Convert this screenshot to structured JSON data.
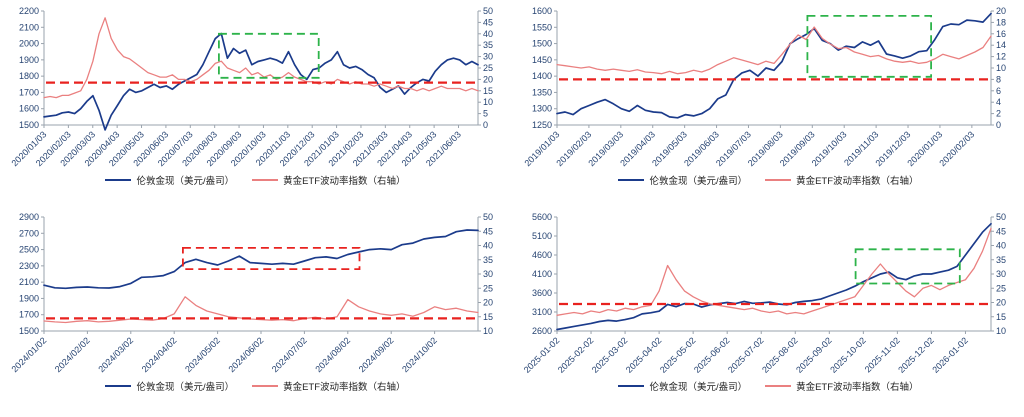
{
  "page": {
    "background": "#ffffff"
  },
  "chart_data": [
    {
      "type": "line",
      "title": "",
      "x_span_months": 17.8,
      "x_ticks": [
        "2020/01/03",
        "2020/02/03",
        "2020/03/03",
        "2020/04/03",
        "2020/05/03",
        "2020/06/03",
        "2020/07/03",
        "2020/08/03",
        "2020/09/03",
        "2020/10/03",
        "2020/11/03",
        "2020/12/03",
        "2021/01/03",
        "2021/02/03",
        "2021/03/03",
        "2021/04/03",
        "2021/05/03",
        "2021/06/03"
      ],
      "left_axis": {
        "min": 1500,
        "max": 2200,
        "ticks": [
          1500,
          1600,
          1700,
          1800,
          1900,
          2000,
          2100,
          2200
        ]
      },
      "right_axis": {
        "min": 0,
        "max": 50,
        "ticks": [
          0,
          5,
          10,
          15,
          20,
          25,
          30,
          35,
          40,
          45,
          50
        ]
      },
      "ref_line": {
        "axis": "left",
        "value_left": 1760,
        "color": "#e8221f"
      },
      "box": {
        "x0": 0.403,
        "x1": 0.633,
        "y_top": 2060,
        "y_bottom": 1790,
        "color": "#2db34a"
      },
      "series": [
        {
          "name": "伦敦金现（美元/盎司）",
          "axis": "left",
          "color": "#1b3b8b",
          "values": [
            1550,
            1555,
            1560,
            1575,
            1580,
            1570,
            1600,
            1645,
            1680,
            1590,
            1470,
            1560,
            1620,
            1680,
            1720,
            1700,
            1710,
            1730,
            1750,
            1730,
            1740,
            1720,
            1750,
            1770,
            1790,
            1810,
            1870,
            1950,
            2030,
            2062,
            1910,
            1970,
            1940,
            1960,
            1870,
            1890,
            1900,
            1910,
            1900,
            1880,
            1950,
            1870,
            1810,
            1780,
            1840,
            1850,
            1880,
            1900,
            1950,
            1870,
            1850,
            1860,
            1840,
            1810,
            1790,
            1730,
            1700,
            1720,
            1740,
            1690,
            1730,
            1760,
            1780,
            1770,
            1830,
            1870,
            1900,
            1910,
            1900,
            1870,
            1890,
            1870
          ]
        },
        {
          "name": "黄金ETF波动率指数（右轴）",
          "axis": "right",
          "color": "#ea8080",
          "values": [
            12,
            12.5,
            12,
            13,
            13,
            14,
            15,
            20,
            28,
            40,
            47,
            38,
            33,
            30,
            29,
            27,
            25,
            23,
            22,
            21,
            21,
            22,
            20,
            20,
            19,
            20,
            22,
            24,
            27,
            28,
            25,
            24,
            23,
            25,
            22,
            23,
            21,
            22,
            20,
            21,
            23,
            21,
            20,
            19,
            19,
            18,
            19,
            18,
            20,
            19,
            18,
            19,
            18,
            18,
            17,
            18,
            17,
            16,
            17,
            16,
            16,
            15,
            16,
            15,
            16,
            17,
            16,
            16,
            16,
            15,
            16,
            15
          ]
        }
      ]
    },
    {
      "type": "line",
      "title": "",
      "x_span_months": 13.6,
      "x_ticks": [
        "2019/01/03",
        "2019/02/03",
        "2019/03/03",
        "2019/04/03",
        "2019/05/03",
        "2019/06/03",
        "2019/07/03",
        "2019/08/03",
        "2019/09/03",
        "2019/10/03",
        "2019/11/03",
        "2019/12/03",
        "2020/01/03",
        "2020/02/03"
      ],
      "left_axis": {
        "min": 1250,
        "max": 1600,
        "ticks": [
          1250,
          1300,
          1350,
          1400,
          1450,
          1500,
          1550,
          1600
        ]
      },
      "right_axis": {
        "min": 0,
        "max": 20,
        "ticks": [
          0,
          2,
          4,
          6,
          8,
          10,
          12,
          14,
          16,
          18,
          20
        ]
      },
      "ref_line": {
        "axis": "left",
        "value_left": 1390,
        "color": "#e8221f"
      },
      "box": {
        "x0": 0.577,
        "x1": 0.862,
        "y_top": 1585,
        "y_bottom": 1398,
        "color": "#2db34a"
      },
      "series": [
        {
          "name": "伦敦金现（美元/盎司）",
          "axis": "left",
          "color": "#1b3b8b",
          "values": [
            1285,
            1290,
            1282,
            1300,
            1310,
            1320,
            1328,
            1315,
            1300,
            1292,
            1310,
            1295,
            1290,
            1288,
            1275,
            1272,
            1282,
            1278,
            1285,
            1300,
            1330,
            1342,
            1390,
            1410,
            1418,
            1400,
            1425,
            1418,
            1445,
            1500,
            1515,
            1528,
            1546,
            1510,
            1500,
            1480,
            1492,
            1488,
            1505,
            1495,
            1508,
            1468,
            1462,
            1455,
            1462,
            1475,
            1478,
            1512,
            1552,
            1560,
            1558,
            1572,
            1570,
            1566,
            1592
          ]
        },
        {
          "name": "黄金ETF波动率指数（右轴）",
          "axis": "right",
          "color": "#ea8080",
          "values": [
            10.6,
            10.4,
            10.2,
            10.0,
            10.2,
            9.8,
            9.6,
            9.8,
            9.6,
            9.4,
            9.7,
            9.3,
            9.2,
            9.0,
            9.4,
            9.0,
            9.2,
            9.6,
            9.3,
            9.8,
            10.6,
            11.2,
            11.8,
            11.4,
            11.0,
            10.6,
            11.2,
            10.8,
            12.4,
            14.2,
            15.8,
            15.0,
            17.2,
            15.2,
            14.2,
            13.4,
            13.6,
            12.8,
            12.4,
            12.0,
            12.2,
            11.6,
            11.2,
            11.0,
            11.2,
            10.8,
            11.0,
            11.6,
            12.4,
            12.0,
            11.6,
            12.2,
            12.8,
            13.6,
            15.6
          ]
        }
      ]
    },
    {
      "type": "line",
      "title": "",
      "x_span_months": 10.0,
      "x_ticks": [
        "2024/01/02",
        "2024/02/02",
        "2024/03/02",
        "2024/04/02",
        "2024/05/02",
        "2024/06/02",
        "2024/07/02",
        "2024/08/02",
        "2024/09/02",
        "2024/10/02"
      ],
      "left_axis": {
        "min": 1500,
        "max": 2900,
        "ticks": [
          1500,
          1700,
          1900,
          2100,
          2300,
          2500,
          2700,
          2900
        ]
      },
      "right_axis": {
        "min": 10,
        "max": 50,
        "ticks": [
          10,
          15,
          20,
          25,
          30,
          35,
          40,
          45,
          50
        ]
      },
      "ref_line": {
        "axis": "left",
        "value_left": 1655,
        "color": "#e8221f"
      },
      "box": {
        "x0": 0.32,
        "x1": 0.727,
        "y_top": 2520,
        "y_bottom": 2260,
        "color": "#e8221f"
      },
      "series": [
        {
          "name": "伦敦金现（美元/盎司）",
          "axis": "left",
          "color": "#1b3b8b",
          "values": [
            2063,
            2030,
            2025,
            2035,
            2040,
            2030,
            2028,
            2045,
            2085,
            2160,
            2165,
            2180,
            2230,
            2340,
            2380,
            2340,
            2310,
            2360,
            2420,
            2340,
            2330,
            2320,
            2330,
            2320,
            2360,
            2400,
            2410,
            2390,
            2440,
            2470,
            2500,
            2510,
            2500,
            2560,
            2580,
            2630,
            2650,
            2660,
            2720,
            2740,
            2735
          ]
        },
        {
          "name": "黄金ETF波动率指数（右轴）",
          "axis": "right",
          "color": "#ea8080",
          "values": [
            13.5,
            13.2,
            13.0,
            13.4,
            13.6,
            13.2,
            13.4,
            13.8,
            14.2,
            14.0,
            13.8,
            14.4,
            16.0,
            22.0,
            19.0,
            17.0,
            16.0,
            15.0,
            14.6,
            14.2,
            14.0,
            13.8,
            14.0,
            13.6,
            14.4,
            14.8,
            14.2,
            15.0,
            21.0,
            18.5,
            17.0,
            16.0,
            15.5,
            16.0,
            15.2,
            16.5,
            18.5,
            17.5,
            18.0,
            17.0,
            16.5
          ]
        }
      ]
    },
    {
      "type": "line",
      "title": "",
      "x_span_months": 12.75,
      "x_ticks": [
        "2025-01-02",
        "2025-02-02",
        "2025-03-02",
        "2025-04-02",
        "2025-05-02",
        "2025-06-02",
        "2025-07-02",
        "2025-08-02",
        "2025-09-02",
        "2025-10-02",
        "2025-11-02",
        "2025-12-02",
        "2026-01-02"
      ],
      "left_axis": {
        "min": 2600,
        "max": 5600,
        "ticks": [
          2600,
          3100,
          3600,
          4100,
          4600,
          5100,
          5600
        ]
      },
      "right_axis": {
        "min": 10,
        "max": 50,
        "ticks": [
          10,
          15,
          20,
          25,
          30,
          35,
          40,
          45,
          50
        ]
      },
      "ref_line": {
        "axis": "left",
        "value_left": 3310,
        "color": "#e8221f"
      },
      "box": {
        "x0": 0.688,
        "x1": 0.928,
        "y_top": 4750,
        "y_bottom": 3850,
        "color": "#2db34a"
      },
      "series": [
        {
          "name": "伦敦金现（美元/盎司）",
          "axis": "left",
          "color": "#1b3b8b",
          "values": [
            2640,
            2680,
            2720,
            2760,
            2800,
            2850,
            2880,
            2860,
            2900,
            2950,
            3050,
            3080,
            3120,
            3300,
            3240,
            3320,
            3310,
            3230,
            3290,
            3320,
            3350,
            3320,
            3380,
            3330,
            3340,
            3360,
            3310,
            3290,
            3350,
            3380,
            3400,
            3440,
            3520,
            3600,
            3680,
            3780,
            3900,
            4000,
            4100,
            4150,
            4000,
            3950,
            4050,
            4100,
            4100,
            4150,
            4200,
            4300,
            4600,
            4900,
            5200,
            5420
          ]
        },
        {
          "name": "黄金ETF波动率指数（右轴）",
          "axis": "right",
          "color": "#ea8080",
          "values": [
            15.5,
            16.0,
            16.5,
            16.0,
            17.0,
            16.5,
            17.5,
            17.0,
            18.0,
            17.5,
            18.5,
            19.0,
            24.0,
            33.0,
            28.0,
            24.0,
            22.0,
            20.5,
            19.5,
            19.0,
            18.5,
            18.0,
            17.5,
            18.0,
            17.0,
            16.5,
            17.0,
            16.0,
            16.5,
            16.0,
            17.0,
            18.0,
            19.0,
            20.0,
            21.0,
            22.0,
            26.0,
            30.0,
            33.5,
            30.0,
            27.0,
            24.0,
            22.0,
            25.0,
            26.0,
            24.5,
            26.0,
            27.0,
            28.0,
            32.0,
            38.0,
            46.0
          ]
        }
      ]
    }
  ]
}
